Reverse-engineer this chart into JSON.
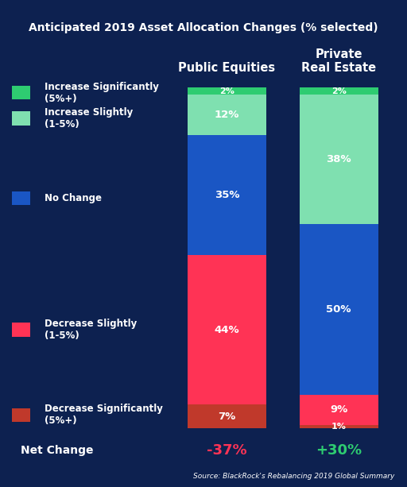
{
  "title": "Anticipated 2019 Asset Allocation Changes (% selected)",
  "background_color": "#0d2150",
  "columns": [
    "Public Equities",
    "Private\nReal Estate"
  ],
  "draw_order": [
    "Decrease Significantly",
    "Decrease Slightly",
    "No Change",
    "Increase Slightly",
    "Increase Significantly"
  ],
  "values": {
    "Public Equities": [
      7,
      44,
      35,
      12,
      2
    ],
    "Private\nReal Estate": [
      1,
      9,
      50,
      38,
      2
    ]
  },
  "colors": {
    "Decrease Significantly": "#c0392b",
    "Decrease Slightly": "#ff3355",
    "No Change": "#1a56c4",
    "Increase Slightly": "#7fe0b0",
    "Increase Significantly": "#2ecc71"
  },
  "legend_labels": [
    "Increase Significantly\n(5%+)",
    "Increase Slightly\n(1-5%)",
    "No Change",
    "Decrease Slightly\n(1-5%)",
    "Decrease Significantly\n(5%+)"
  ],
  "legend_colors": [
    "#2ecc71",
    "#7fe0b0",
    "#1a56c4",
    "#ff3355",
    "#c0392b"
  ],
  "net_change_values": [
    "-37%",
    "+30%"
  ],
  "net_change_colors": [
    "#ff3355",
    "#2ecc71"
  ],
  "source": "Source: BlackRock's Rebalancing 2019 Global Summary"
}
